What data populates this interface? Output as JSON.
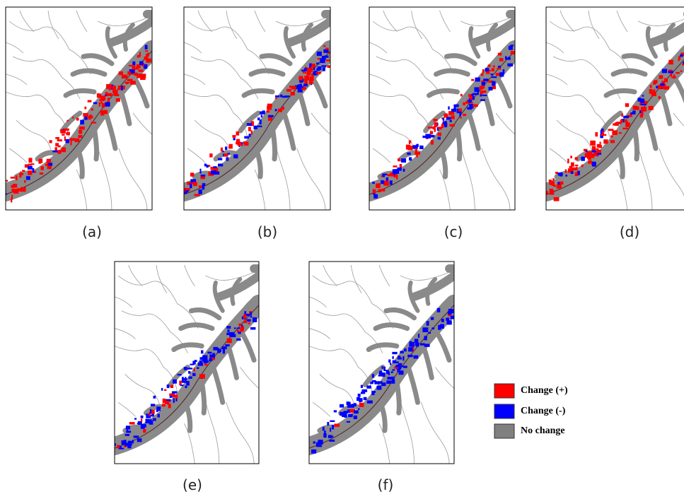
{
  "panels": [
    {
      "label": "(a)"
    },
    {
      "label": "(b)"
    },
    {
      "label": "(c)"
    },
    {
      "label": "(d)"
    },
    {
      "label": "(e)"
    },
    {
      "label": "(f)"
    }
  ],
  "legend": {
    "items": [
      {
        "label": "Change (+)",
        "color": "#ff0000"
      },
      {
        "label": "Change (-)",
        "color": "#0000ff"
      },
      {
        "label": "No change",
        "color": "#808080"
      }
    ]
  }
}
